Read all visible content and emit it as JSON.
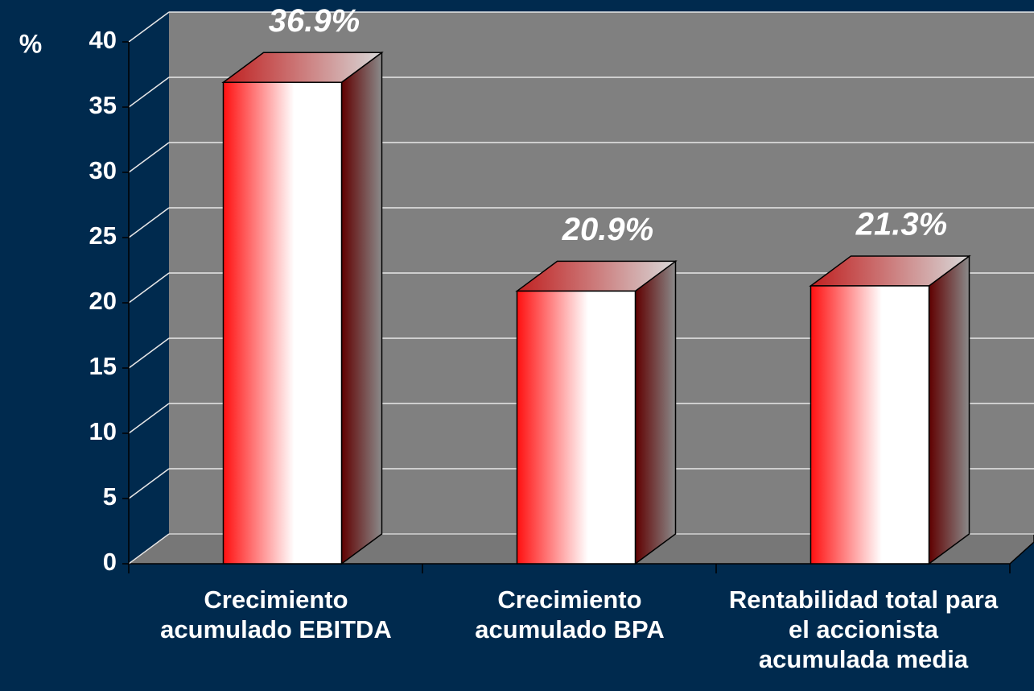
{
  "chart_data": {
    "type": "bar3d",
    "y_label": "%",
    "categories": [
      "Crecimiento acumulado EBITDA",
      "Crecimiento acumulado BPA",
      "Rentabilidad total para el accionista acumulada media"
    ],
    "values": [
      36.9,
      20.9,
      21.3
    ],
    "value_labels": [
      "36.9%",
      "20.9%",
      "21.3%"
    ],
    "color": "#ff0000",
    "ylim": [
      0,
      40
    ],
    "yticks": [
      0,
      5,
      10,
      15,
      20,
      25,
      30,
      35,
      40
    ],
    "grid": true
  }
}
